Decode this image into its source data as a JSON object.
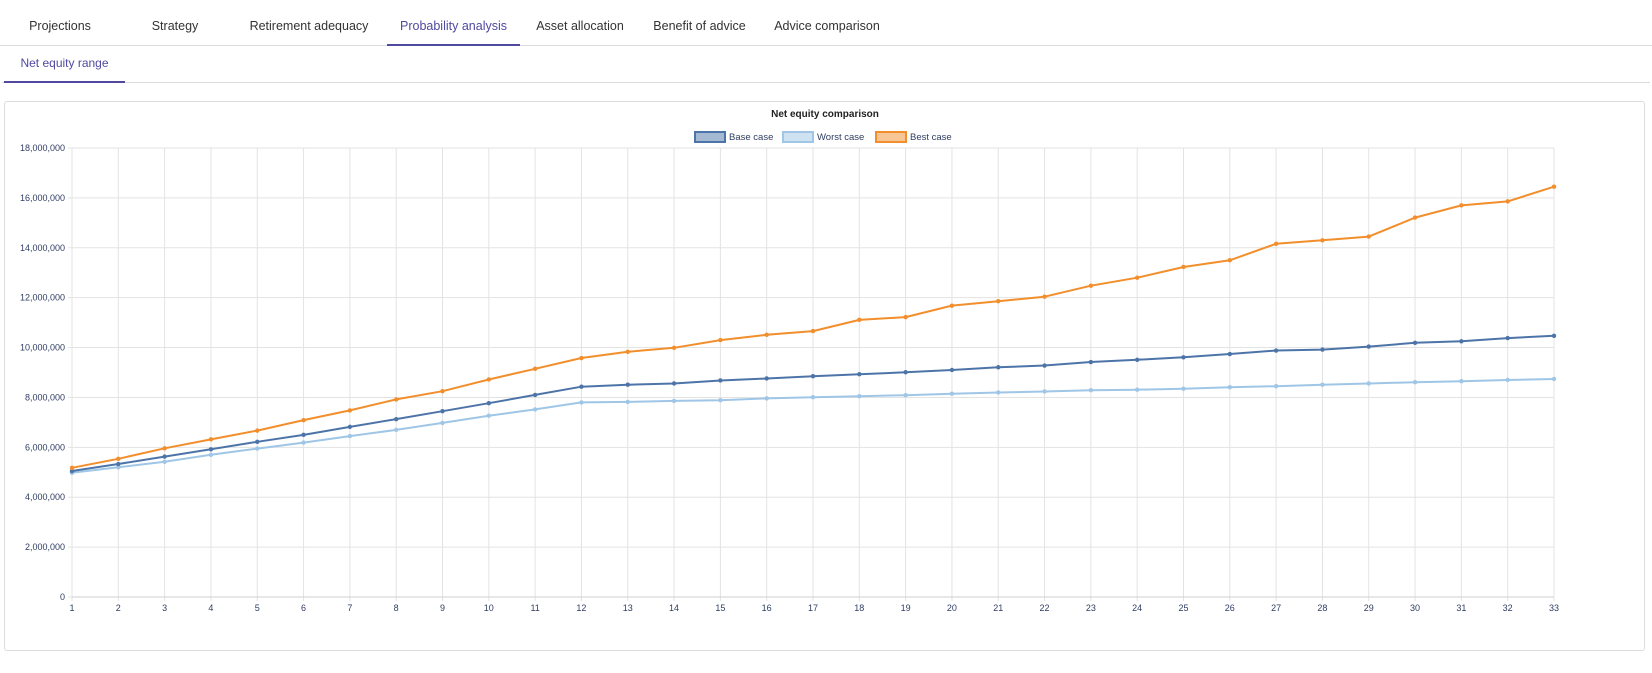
{
  "tabs": [
    {
      "label": "Projections",
      "active": false
    },
    {
      "label": "Strategy",
      "active": false
    },
    {
      "label": "Retirement adequacy",
      "active": false
    },
    {
      "label": "Probability analysis",
      "active": true
    },
    {
      "label": "Asset allocation",
      "active": false
    },
    {
      "label": "Benefit of advice",
      "active": false
    },
    {
      "label": "Advice comparison",
      "active": false
    }
  ],
  "subtabs": [
    {
      "label": "Net equity range",
      "active": true
    }
  ],
  "colors": {
    "accent": "#4f4aa0",
    "base_case": "#4d74a8",
    "worst_case": "#9fc6e6",
    "best_case": "#f28e2b"
  },
  "chart_data": {
    "type": "line",
    "title": "Net equity comparison",
    "xlabel": "",
    "ylabel": "",
    "x": [
      1,
      2,
      3,
      4,
      5,
      6,
      7,
      8,
      9,
      10,
      11,
      12,
      13,
      14,
      15,
      16,
      17,
      18,
      19,
      20,
      21,
      22,
      23,
      24,
      25,
      26,
      27,
      28,
      29,
      30,
      31,
      32,
      33
    ],
    "ylim": [
      0,
      18000000
    ],
    "yticks": [
      0,
      2000000,
      4000000,
      6000000,
      8000000,
      10000000,
      12000000,
      14000000,
      16000000,
      18000000
    ],
    "ytick_labels": [
      "0",
      "2,000,000",
      "4,000,000",
      "6,000,000",
      "8,000,000",
      "10,000,000",
      "12,000,000",
      "14,000,000",
      "16,000,000",
      "18,000,000"
    ],
    "grid": true,
    "legend_position": "top-center",
    "series": [
      {
        "name": "Base case",
        "color": "#4d74a8",
        "values": [
          5050000,
          5330000,
          5630000,
          5920000,
          6220000,
          6500000,
          6820000,
          7130000,
          7450000,
          7770000,
          8100000,
          8430000,
          8510000,
          8560000,
          8680000,
          8760000,
          8850000,
          8930000,
          9010000,
          9100000,
          9210000,
          9280000,
          9420000,
          9510000,
          9610000,
          9740000,
          9880000,
          9920000,
          10040000,
          10190000,
          10250000,
          10380000,
          10470000
        ]
      },
      {
        "name": "Worst case",
        "color": "#9fc6e6",
        "values": [
          4980000,
          5200000,
          5420000,
          5700000,
          5950000,
          6190000,
          6450000,
          6700000,
          6980000,
          7270000,
          7520000,
          7800000,
          7820000,
          7860000,
          7890000,
          7960000,
          8010000,
          8050000,
          8090000,
          8150000,
          8200000,
          8240000,
          8290000,
          8310000,
          8350000,
          8410000,
          8450000,
          8510000,
          8560000,
          8610000,
          8650000,
          8700000,
          8740000
        ]
      },
      {
        "name": "Best case",
        "color": "#f28e2b",
        "values": [
          5180000,
          5540000,
          5960000,
          6320000,
          6670000,
          7090000,
          7480000,
          7920000,
          8250000,
          8720000,
          9150000,
          9580000,
          9830000,
          9990000,
          10300000,
          10510000,
          10660000,
          11110000,
          11220000,
          11680000,
          11860000,
          12040000,
          12480000,
          12800000,
          13230000,
          13500000,
          14160000,
          14300000,
          14450000,
          15210000,
          15700000,
          15860000,
          16450000
        ]
      }
    ]
  }
}
